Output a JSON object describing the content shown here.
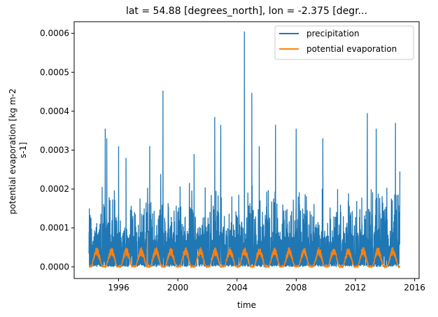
{
  "chart_data": {
    "type": "line",
    "title": "lat = 54.88 [degrees_north], lon = -2.375 [degr...",
    "xlabel": "time",
    "ylabel_line1": "potential evaporation [kg m-2",
    "ylabel_line2": "s-1]",
    "xlim": [
      1993.0,
      2016.3
    ],
    "ylim": [
      -3e-05,
      0.00063
    ],
    "xticks": [
      1996,
      2000,
      2004,
      2008,
      2012,
      2016
    ],
    "xtick_labels": [
      "1996",
      "2000",
      "2004",
      "2008",
      "2012",
      "2016"
    ],
    "yticks": [
      0.0,
      0.0001,
      0.0002,
      0.0003,
      0.0004,
      0.0005,
      0.0006
    ],
    "ytick_labels": [
      "0.0000",
      "0.0001",
      "0.0002",
      "0.0003",
      "0.0004",
      "0.0005",
      "0.0006"
    ],
    "grid": false,
    "legend_position": "top-right",
    "series": [
      {
        "name": "precipitation",
        "color": "#1f77b4",
        "x_range": [
          1994.0,
          2015.0
        ],
        "peaks": [
          {
            "x": 1995.1,
            "y": 0.000355
          },
          {
            "x": 1995.2,
            "y": 0.00033
          },
          {
            "x": 1996.0,
            "y": 0.00031
          },
          {
            "x": 1996.5,
            "y": 0.00028
          },
          {
            "x": 1998.1,
            "y": 0.00031
          },
          {
            "x": 1999.0,
            "y": 0.000453
          },
          {
            "x": 2001.1,
            "y": 0.00029
          },
          {
            "x": 2002.5,
            "y": 0.000385
          },
          {
            "x": 2002.9,
            "y": 0.000365
          },
          {
            "x": 2004.5,
            "y": 0.000605
          },
          {
            "x": 2005.0,
            "y": 0.000447
          },
          {
            "x": 2005.5,
            "y": 0.00031
          },
          {
            "x": 2006.6,
            "y": 0.000365
          },
          {
            "x": 2008.0,
            "y": 0.000355
          },
          {
            "x": 2009.8,
            "y": 0.00033
          },
          {
            "x": 2012.8,
            "y": 0.000395
          },
          {
            "x": 2013.4,
            "y": 0.000355
          },
          {
            "x": 2014.7,
            "y": 0.00037
          },
          {
            "x": 2015.0,
            "y": 0.000245
          }
        ]
      },
      {
        "name": "potential evaporation",
        "color": "#ff7f0e",
        "x_range": [
          1994.0,
          2015.0
        ],
        "summer_peak_approx": 5e-05,
        "spike": {
          "x": 1997.95,
          "y": 8.8e-05
        }
      }
    ]
  }
}
